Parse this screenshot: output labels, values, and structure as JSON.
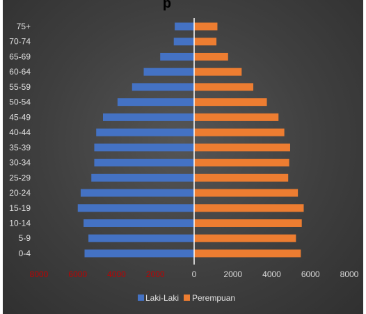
{
  "chart_data": {
    "type": "bar",
    "orientation": "horizontal",
    "title_partial": "p",
    "categories": [
      "0-4",
      "5-9",
      "10-14",
      "15-19",
      "20-24",
      "25-29",
      "30-34",
      "35-39",
      "40-44",
      "45-49",
      "50-54",
      "55-59",
      "60-64",
      "65-69",
      "70-74",
      "75+"
    ],
    "series": [
      {
        "name": "Laki-Laki",
        "values": [
          -5650,
          -5450,
          -5700,
          -6000,
          -5850,
          -5300,
          -5150,
          -5150,
          -5050,
          -4700,
          -3950,
          -3200,
          -2600,
          -1750,
          -1050,
          -1000
        ],
        "color": "#4472C4"
      },
      {
        "name": "Perempuan",
        "values": [
          5500,
          5250,
          5550,
          5650,
          5350,
          4850,
          4900,
          4950,
          4650,
          4350,
          3750,
          3050,
          2450,
          1750,
          1150,
          1200
        ],
        "color": "#ED7D31"
      }
    ],
    "xticks": [
      "8000",
      "6000",
      "4000",
      "2000",
      "0",
      "2000",
      "4000",
      "6000",
      "8000"
    ],
    "xlim": [
      -8000,
      8000
    ],
    "legend_position": "bottom",
    "negative_tick_color": "#C00000",
    "tick_color": "#D9D9D9"
  }
}
